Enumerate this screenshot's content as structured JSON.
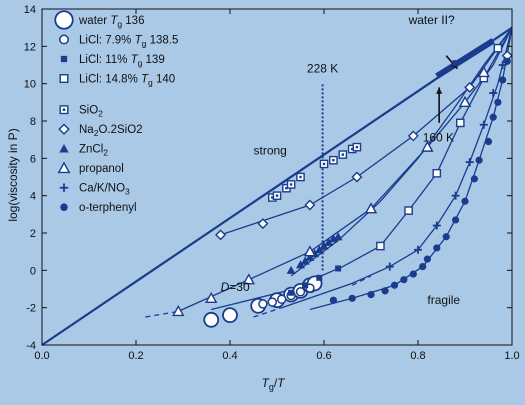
{
  "chart_data": {
    "type": "scatter",
    "xlabel": "Tg/T",
    "ylabel": "log(viscosity in P)",
    "xlim": [
      0.0,
      1.0
    ],
    "ylim": [
      -4,
      14
    ],
    "xticks": [
      "0.0",
      "0.2",
      "0.4",
      "0.6",
      "0.8",
      "1.0"
    ],
    "yticks": [
      "-4",
      "-2",
      "0",
      "2",
      "4",
      "6",
      "8",
      "10",
      "12",
      "14"
    ],
    "grid": false,
    "legend_position": "top-left",
    "colors": {
      "background": "#a9c9e7",
      "series": "#1a3c8c",
      "text": "#111111"
    },
    "series": [
      {
        "name": "water Tg 136",
        "marker": "large-open-circle",
        "points": [
          [
            0.36,
            -2.65
          ],
          [
            0.4,
            -2.4
          ],
          [
            0.46,
            -1.9
          ],
          [
            0.5,
            -1.6
          ],
          [
            0.53,
            -1.3
          ],
          [
            0.55,
            -1.1
          ],
          [
            0.57,
            -0.8
          ],
          [
            0.58,
            -0.7
          ]
        ]
      },
      {
        "name": "LiCl: 7.9% Tg 138.5",
        "marker": "small-open-circle",
        "points": [
          [
            0.47,
            -1.8
          ],
          [
            0.49,
            -1.7
          ],
          [
            0.51,
            -1.55
          ],
          [
            0.53,
            -1.35
          ],
          [
            0.55,
            -1.15
          ],
          [
            0.57,
            -0.95
          ]
        ]
      },
      {
        "name": "LiCl: 11% Tg 139",
        "marker": "filled-square",
        "points": [
          [
            0.53,
            -1.2
          ],
          [
            0.56,
            -0.8
          ],
          [
            0.59,
            -0.4
          ],
          [
            0.63,
            0.1
          ],
          [
            0.88,
            11.1
          ]
        ]
      },
      {
        "name": "LiCl: 14.8% Tg 140",
        "marker": "open-square",
        "points": [
          [
            0.72,
            1.3
          ],
          [
            0.78,
            3.2
          ],
          [
            0.84,
            5.2
          ],
          [
            0.89,
            7.9
          ],
          [
            0.94,
            10.3
          ],
          [
            0.97,
            11.9
          ]
        ]
      },
      {
        "name": "SiO2",
        "marker": "dotted-square",
        "points": [
          [
            0.49,
            3.9
          ],
          [
            0.5,
            4.0
          ],
          [
            0.52,
            4.4
          ],
          [
            0.53,
            4.6
          ],
          [
            0.55,
            5.0
          ],
          [
            0.6,
            5.7
          ],
          [
            0.62,
            5.9
          ],
          [
            0.64,
            6.2
          ],
          [
            0.66,
            6.5
          ],
          [
            0.67,
            6.6
          ]
        ]
      },
      {
        "name": "Na2O.2SiO2",
        "marker": "open-diamond",
        "points": [
          [
            0.38,
            1.9
          ],
          [
            0.47,
            2.5
          ],
          [
            0.57,
            3.5
          ],
          [
            0.67,
            5.0
          ],
          [
            0.79,
            7.2
          ],
          [
            0.91,
            9.8
          ],
          [
            0.99,
            11.5
          ]
        ]
      },
      {
        "name": "ZnCl2",
        "marker": "filled-triangle",
        "points": [
          [
            0.53,
            0.0
          ],
          [
            0.55,
            0.3
          ],
          [
            0.56,
            0.5
          ],
          [
            0.57,
            0.7
          ],
          [
            0.58,
            0.9
          ],
          [
            0.59,
            1.1
          ],
          [
            0.6,
            1.3
          ],
          [
            0.61,
            1.5
          ],
          [
            0.62,
            1.7
          ],
          [
            0.63,
            1.8
          ]
        ]
      },
      {
        "name": "propanol",
        "marker": "open-triangle",
        "points": [
          [
            0.29,
            -2.2
          ],
          [
            0.36,
            -1.5
          ],
          [
            0.44,
            -0.5
          ],
          [
            0.57,
            1.0
          ],
          [
            0.7,
            3.3
          ],
          [
            0.82,
            6.6
          ],
          [
            0.9,
            9.0
          ],
          [
            0.94,
            10.6
          ]
        ]
      },
      {
        "name": "Ca/K/NO3",
        "marker": "plus",
        "points": [
          [
            0.74,
            0.2
          ],
          [
            0.8,
            1.1
          ],
          [
            0.84,
            2.4
          ],
          [
            0.88,
            4.0
          ],
          [
            0.91,
            5.8
          ],
          [
            0.94,
            7.8
          ],
          [
            0.96,
            9.5
          ],
          [
            0.98,
            11.0
          ]
        ]
      },
      {
        "name": "o-terphenyl",
        "marker": "filled-circle",
        "points": [
          [
            0.62,
            -1.6
          ],
          [
            0.66,
            -1.5
          ],
          [
            0.7,
            -1.3
          ],
          [
            0.73,
            -1.1
          ],
          [
            0.75,
            -0.8
          ],
          [
            0.77,
            -0.5
          ],
          [
            0.79,
            -0.2
          ],
          [
            0.81,
            0.2
          ],
          [
            0.82,
            0.6
          ],
          [
            0.84,
            1.2
          ],
          [
            0.86,
            1.8
          ],
          [
            0.88,
            2.7
          ],
          [
            0.9,
            3.7
          ],
          [
            0.92,
            4.9
          ],
          [
            0.93,
            5.9
          ],
          [
            0.95,
            6.9
          ],
          [
            0.96,
            8.2
          ],
          [
            0.97,
            9.0
          ],
          [
            0.98,
            10.2
          ],
          [
            0.99,
            11.2
          ]
        ]
      }
    ],
    "curves": [
      {
        "points": [
          [
            0.0,
            -4.0
          ],
          [
            1.0,
            13.0
          ]
        ]
      },
      {
        "points": [
          [
            0.29,
            -2.2
          ],
          [
            0.44,
            -0.5
          ],
          [
            0.57,
            1.0
          ],
          [
            0.7,
            3.3
          ],
          [
            0.82,
            6.6
          ],
          [
            0.9,
            9.0
          ],
          [
            0.96,
            11.0
          ],
          [
            1.0,
            13.0
          ]
        ]
      },
      {
        "points": [
          [
            0.38,
            1.9
          ],
          [
            0.57,
            3.5
          ],
          [
            0.67,
            5.0
          ],
          [
            0.79,
            7.2
          ],
          [
            0.91,
            9.8
          ],
          [
            1.0,
            13.0
          ]
        ]
      },
      {
        "points": [
          [
            0.53,
            -0.3
          ],
          [
            0.63,
            1.6
          ],
          [
            0.72,
            3.7
          ],
          [
            0.8,
            6.0
          ],
          [
            0.88,
            8.8
          ],
          [
            0.94,
            11.0
          ],
          [
            1.0,
            13.0
          ]
        ]
      },
      {
        "points": [
          [
            0.36,
            -2.1
          ],
          [
            0.52,
            -1.1
          ],
          [
            0.64,
            0.2
          ],
          [
            0.72,
            1.3
          ],
          [
            0.78,
            3.2
          ],
          [
            0.84,
            5.2
          ],
          [
            0.89,
            7.9
          ],
          [
            0.94,
            10.3
          ],
          [
            1.0,
            13.0
          ]
        ]
      },
      {
        "points": [
          [
            0.51,
            -2.0
          ],
          [
            0.66,
            -0.7
          ],
          [
            0.74,
            0.2
          ],
          [
            0.8,
            1.1
          ],
          [
            0.84,
            2.4
          ],
          [
            0.88,
            4.0
          ],
          [
            0.91,
            5.8
          ],
          [
            0.94,
            7.8
          ],
          [
            0.97,
            10.0
          ],
          [
            1.0,
            13.0
          ]
        ]
      },
      {
        "points": [
          [
            0.57,
            -2.1
          ],
          [
            0.66,
            -1.5
          ],
          [
            0.75,
            -0.8
          ],
          [
            0.81,
            0.2
          ],
          [
            0.86,
            1.8
          ],
          [
            0.9,
            3.7
          ],
          [
            0.93,
            5.9
          ],
          [
            0.96,
            8.2
          ],
          [
            0.98,
            10.2
          ],
          [
            1.0,
            13.0
          ]
        ]
      }
    ],
    "dashed_extensions": [
      {
        "points": [
          [
            0.22,
            -2.5
          ],
          [
            0.29,
            -2.2
          ]
        ]
      },
      {
        "points": [
          [
            0.66,
            -0.8
          ],
          [
            0.7,
            -0.3
          ]
        ]
      },
      {
        "points": [
          [
            0.45,
            -2.5
          ],
          [
            0.51,
            -2.0
          ]
        ]
      }
    ],
    "vertical_dotted_line": {
      "x": 0.597,
      "from_y": 0.0,
      "to_y": 10.0
    },
    "thick_segment": {
      "points": [
        [
          0.84,
          10.4
        ],
        [
          0.96,
          12.3
        ]
      ]
    },
    "annotations": [
      {
        "text": "228 K",
        "x": 0.597,
        "y": 10.6,
        "align": "center"
      },
      {
        "text": "160 K",
        "x": 0.81,
        "y": 6.9,
        "align": "left"
      },
      {
        "text": "water II?",
        "x": 0.78,
        "y": 13.2,
        "align": "left"
      },
      {
        "text": "strong",
        "x": 0.45,
        "y": 6.2,
        "align": "left"
      },
      {
        "text": "fragile",
        "x": 0.82,
        "y": -1.8,
        "align": "left"
      },
      {
        "text": "D=30",
        "x": 0.38,
        "y": -1.1,
        "align": "left"
      }
    ],
    "arrows": [
      {
        "from": [
          0.845,
          7.9
        ],
        "to": [
          0.845,
          9.8
        ]
      },
      {
        "from": [
          0.86,
          11.5
        ],
        "to": [
          0.884,
          10.8
        ]
      }
    ]
  },
  "legend": {
    "items": [
      {
        "marker": "large-open-circle",
        "label": "water ",
        "sub": "T",
        "sub2": "g",
        "tail": " 136"
      },
      {
        "marker": "small-open-circle",
        "label": "LiCl: 7.9% ",
        "sub": "T",
        "sub2": "g",
        "tail": " 138.5"
      },
      {
        "marker": "filled-square",
        "label": "LiCl: 11% ",
        "sub": "T",
        "sub2": "g",
        "tail": " 139"
      },
      {
        "marker": "open-square",
        "label": "LiCl: 14.8% ",
        "sub": "T",
        "sub2": "g",
        "tail": " 140"
      },
      {
        "marker": "dotted-square",
        "label": "SiO",
        "sub": "",
        "sub2": "2",
        "tail": ""
      },
      {
        "marker": "open-diamond",
        "label": "Na",
        "sub": "",
        "sub2": "2",
        "tail": "O.2SiO2"
      },
      {
        "marker": "filled-triangle",
        "label": "ZnCl",
        "sub": "",
        "sub2": "2",
        "tail": ""
      },
      {
        "marker": "open-triangle",
        "label": "propanol",
        "sub": "",
        "sub2": "",
        "tail": ""
      },
      {
        "marker": "plus",
        "label": "Ca/K/NO",
        "sub": "",
        "sub2": "3",
        "tail": ""
      },
      {
        "marker": "filled-circle",
        "label": "o-terphenyl",
        "sub": "",
        "sub2": "",
        "tail": ""
      }
    ]
  }
}
